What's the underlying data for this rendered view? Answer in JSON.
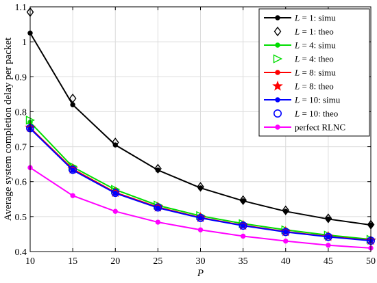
{
  "chart_data": {
    "type": "line",
    "title": "",
    "xlabel": "P",
    "ylabel": "Average system completion delay per packet",
    "xlim": [
      10,
      50
    ],
    "ylim": [
      0.4,
      1.1
    ],
    "x_ticks": [
      "10",
      "15",
      "20",
      "25",
      "30",
      "35",
      "40",
      "45",
      "50"
    ],
    "y_ticks": [
      "0.4",
      "0.5",
      "0.6",
      "0.7",
      "0.8",
      "0.9",
      "1",
      "1.1"
    ],
    "grid": true,
    "legend_position": "top-right",
    "x": [
      10,
      15,
      20,
      25,
      30,
      35,
      40,
      45,
      50
    ],
    "series": [
      {
        "name": "L = 1: simu",
        "label_var": "L",
        "label_rest": " = 1: simu",
        "color": "#000000",
        "style": "line",
        "marker": "dot",
        "values": [
          1.025,
          0.82,
          0.705,
          0.633,
          0.582,
          0.545,
          0.515,
          0.493,
          0.476
        ]
      },
      {
        "name": "L = 1: theo",
        "label_var": "L",
        "label_rest": " = 1: theo",
        "color": "#000000",
        "style": "marker",
        "marker": "diamond",
        "values": [
          1.085,
          0.838,
          0.712,
          0.637,
          0.585,
          0.547,
          0.518,
          0.495,
          0.477
        ]
      },
      {
        "name": "L = 4: simu",
        "label_var": "L",
        "label_rest": " = 4: simu",
        "color": "#00dd00",
        "style": "line",
        "marker": "dot",
        "values": [
          0.77,
          0.642,
          0.577,
          0.532,
          0.502,
          0.48,
          0.462,
          0.447,
          0.435
        ]
      },
      {
        "name": "L = 4: theo",
        "label_var": "L",
        "label_rest": " = 4: theo",
        "color": "#00dd00",
        "style": "marker",
        "marker": "triangle-right",
        "values": [
          0.776,
          0.644,
          0.578,
          0.533,
          0.503,
          0.48,
          0.462,
          0.447,
          0.435
        ]
      },
      {
        "name": "L = 8: simu",
        "label_var": "L",
        "label_rest": " = 8: simu",
        "color": "#ff0000",
        "style": "line",
        "marker": "dot",
        "values": [
          0.754,
          0.636,
          0.569,
          0.527,
          0.497,
          0.475,
          0.457,
          0.443,
          0.432
        ]
      },
      {
        "name": "L = 8: theo",
        "label_var": "L",
        "label_rest": " = 8: theo",
        "color": "#ff0000",
        "style": "marker",
        "marker": "star",
        "values": [
          0.755,
          0.636,
          0.569,
          0.527,
          0.497,
          0.475,
          0.457,
          0.443,
          0.432
        ]
      },
      {
        "name": "L = 10: simu",
        "label_var": "L",
        "label_rest": " = 10: simu",
        "color": "#0000ff",
        "style": "line",
        "marker": "dot",
        "values": [
          0.752,
          0.633,
          0.567,
          0.525,
          0.496,
          0.474,
          0.456,
          0.442,
          0.431
        ]
      },
      {
        "name": "L = 10: theo",
        "label_var": "L",
        "label_rest": " = 10: theo",
        "color": "#0000ff",
        "style": "marker",
        "marker": "circle",
        "values": [
          0.753,
          0.634,
          0.568,
          0.526,
          0.496,
          0.474,
          0.456,
          0.442,
          0.431
        ]
      },
      {
        "name": "perfect RLNC",
        "label_var": "",
        "label_rest": "perfect RLNC",
        "color": "#ff00ff",
        "style": "line",
        "marker": "dot",
        "values": [
          0.64,
          0.56,
          0.515,
          0.484,
          0.462,
          0.444,
          0.43,
          0.418,
          0.41
        ]
      }
    ]
  }
}
